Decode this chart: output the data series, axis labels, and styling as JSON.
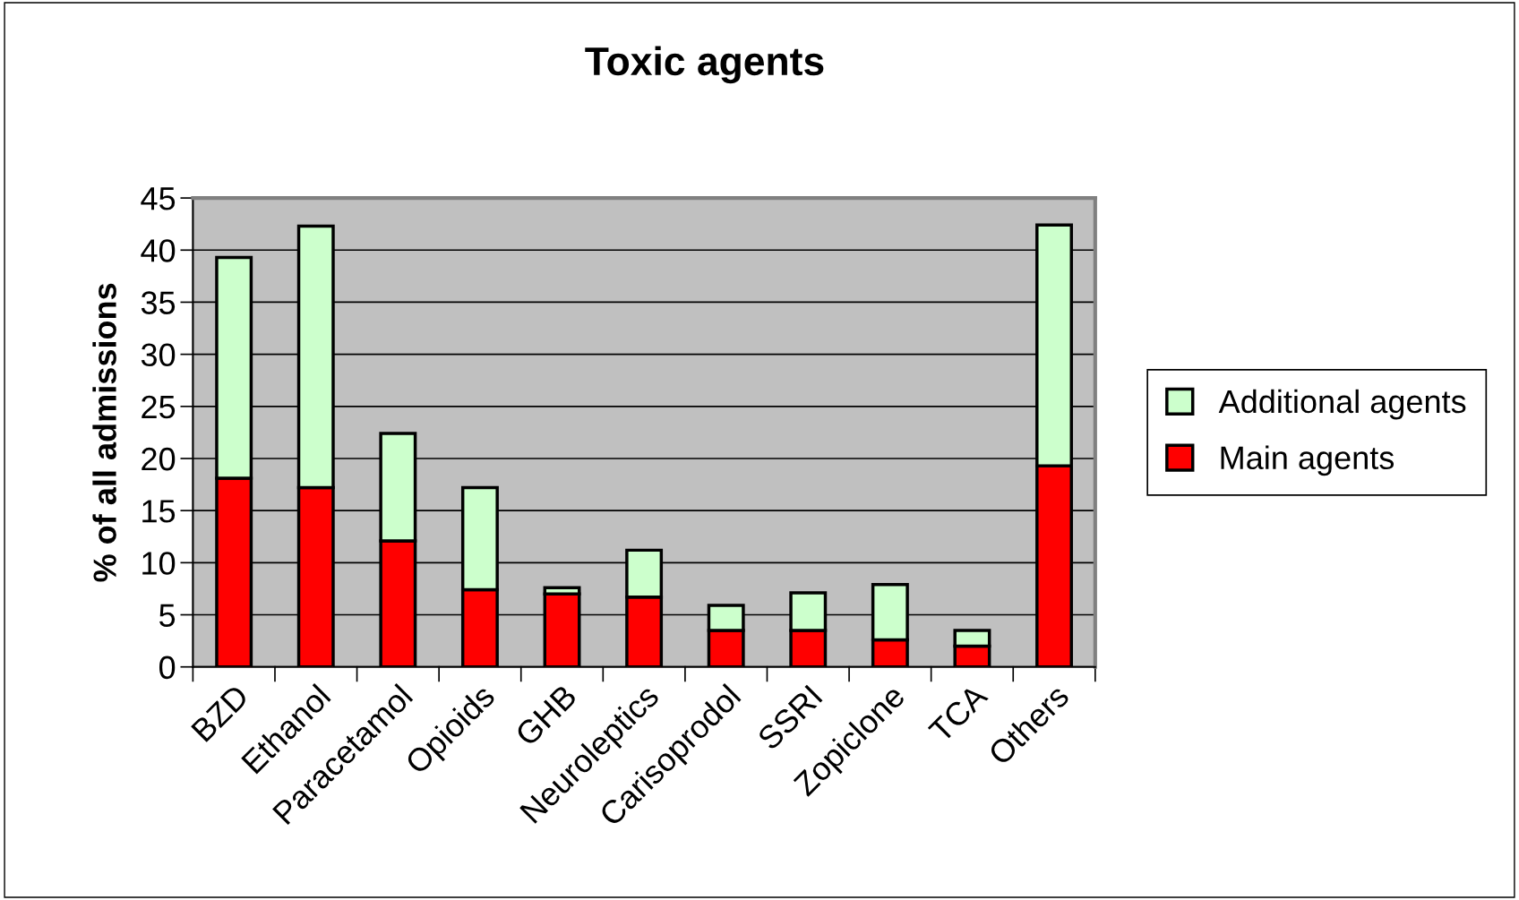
{
  "chart_data": {
    "type": "bar",
    "title": "Toxic agents",
    "ylabel": "% of all admissions",
    "categories": [
      "BZD",
      "Ethanol",
      "Paracetamol",
      "Opioids",
      "GHB",
      "Neuroleptics",
      "Carisoprodol",
      "SSRI",
      "Zopiclone",
      "TCA",
      "Others"
    ],
    "series": [
      {
        "name": "Main agents",
        "color": "#ff0000",
        "values": [
          18.1,
          17.2,
          12.1,
          7.4,
          7.0,
          6.7,
          3.5,
          3.5,
          2.6,
          2.0,
          19.3
        ]
      },
      {
        "name": "Additional agents",
        "color": "#ccffcc",
        "values": [
          21.2,
          25.1,
          10.3,
          9.8,
          0.6,
          4.5,
          2.4,
          3.6,
          5.3,
          1.5,
          23.1
        ]
      }
    ],
    "stacked": true,
    "ylim": [
      0,
      45
    ],
    "yticks": [
      0,
      5,
      10,
      15,
      20,
      25,
      30,
      35,
      40,
      45
    ],
    "grid": "y",
    "legend": "right"
  }
}
